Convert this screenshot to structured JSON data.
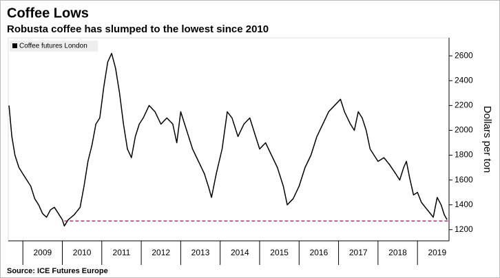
{
  "chart_data": {
    "type": "line",
    "title": "Coffee Lows",
    "subtitle": "Robusta coffee has slumped to the lowest since 2010",
    "y_axis_label": "Dollars per ton",
    "source": "Source: ICE Futures Europe",
    "legend_position": "upper left",
    "series": [
      {
        "name": "Coffee futures London",
        "color": "#000000",
        "x": [
          2008.65,
          2008.72,
          2008.8,
          2008.9,
          2009.0,
          2009.1,
          2009.2,
          2009.3,
          2009.4,
          2009.5,
          2009.6,
          2009.7,
          2009.8,
          2009.9,
          2010.0,
          2010.05,
          2010.15,
          2010.3,
          2010.45,
          2010.55,
          2010.65,
          2010.75,
          2010.85,
          2010.95,
          2011.05,
          2011.15,
          2011.25,
          2011.35,
          2011.45,
          2011.55,
          2011.65,
          2011.75,
          2011.85,
          2011.95,
          2012.05,
          2012.2,
          2012.35,
          2012.5,
          2012.65,
          2012.8,
          2012.9,
          2013.0,
          2013.15,
          2013.3,
          2013.45,
          2013.6,
          2013.7,
          2013.78,
          2013.9,
          2014.05,
          2014.18,
          2014.3,
          2014.45,
          2014.6,
          2014.75,
          2014.9,
          2015.0,
          2015.15,
          2015.3,
          2015.45,
          2015.6,
          2015.7,
          2015.85,
          2016.0,
          2016.15,
          2016.3,
          2016.45,
          2016.6,
          2016.75,
          2016.9,
          2017.05,
          2017.15,
          2017.3,
          2017.4,
          2017.5,
          2017.6,
          2017.7,
          2017.8,
          2017.9,
          2018.0,
          2018.15,
          2018.3,
          2018.45,
          2018.55,
          2018.65,
          2018.72,
          2018.8,
          2018.9,
          2019.0,
          2019.1,
          2019.2,
          2019.3,
          2019.4,
          2019.5,
          2019.6,
          2019.68,
          2019.75
        ],
        "values": [
          2200,
          1950,
          1800,
          1700,
          1650,
          1600,
          1550,
          1450,
          1400,
          1330,
          1300,
          1360,
          1380,
          1330,
          1280,
          1230,
          1280,
          1320,
          1380,
          1550,
          1750,
          1880,
          2050,
          2100,
          2350,
          2550,
          2620,
          2500,
          2300,
          2050,
          1850,
          1780,
          1950,
          2050,
          2100,
          2200,
          2150,
          2050,
          2100,
          2050,
          1900,
          2150,
          2000,
          1850,
          1750,
          1650,
          1550,
          1460,
          1650,
          1850,
          2150,
          2100,
          1950,
          2050,
          2100,
          1950,
          1850,
          1900,
          1800,
          1700,
          1550,
          1400,
          1450,
          1550,
          1700,
          1800,
          1950,
          2050,
          2150,
          2200,
          2250,
          2150,
          2050,
          2000,
          2150,
          2100,
          2000,
          1850,
          1800,
          1750,
          1780,
          1720,
          1650,
          1600,
          1700,
          1750,
          1620,
          1480,
          1500,
          1420,
          1380,
          1340,
          1300,
          1460,
          1400,
          1320,
          1280
        ]
      }
    ],
    "reference_line": {
      "value": 1270,
      "x_start": 2010.05,
      "color": "#b0307a"
    },
    "xlim": [
      2008.63,
      2019.8
    ],
    "xticks": [
      2009,
      2010,
      2011,
      2012,
      2013,
      2014,
      2015,
      2016,
      2017,
      2018,
      2019
    ],
    "ylim": [
      1110,
      2745
    ],
    "yticks": [
      1200,
      1400,
      1600,
      1800,
      2000,
      2200,
      2400,
      2600
    ]
  }
}
